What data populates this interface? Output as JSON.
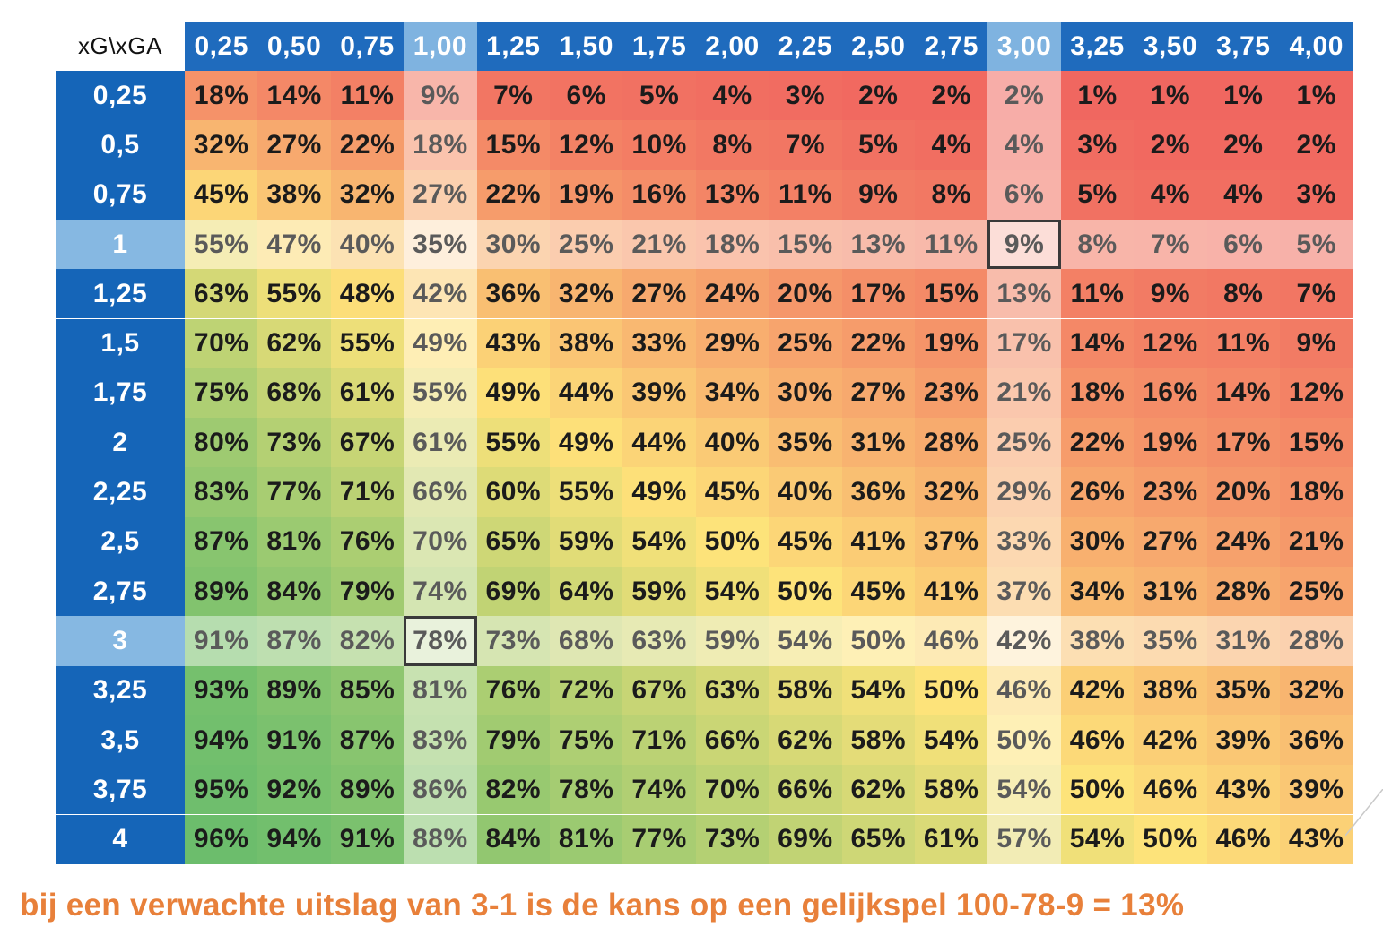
{
  "corner_label": "xG\\xGA",
  "caption": "bij een verwachte uitslag van 3-1 is de kans op een gelijkspel 100-78-9 = 13%",
  "chart_data": {
    "type": "heatmap",
    "x_header": "xGA",
    "y_header": "xG",
    "columns": [
      "0,25",
      "0,50",
      "0,75",
      "1,00",
      "1,25",
      "1,50",
      "1,75",
      "2,00",
      "2,25",
      "2,50",
      "2,75",
      "3,00",
      "3,25",
      "3,50",
      "3,75",
      "4,00"
    ],
    "rows": [
      "0,25",
      "0,5",
      "0,75",
      "1",
      "1,25",
      "1,5",
      "1,75",
      "2",
      "2,25",
      "2,5",
      "2,75",
      "3",
      "3,25",
      "3,5",
      "3,75",
      "4"
    ],
    "values": [
      [
        18,
        14,
        11,
        9,
        7,
        6,
        5,
        4,
        3,
        2,
        2,
        2,
        1,
        1,
        1,
        1
      ],
      [
        32,
        27,
        22,
        18,
        15,
        12,
        10,
        8,
        7,
        5,
        4,
        4,
        3,
        2,
        2,
        2
      ],
      [
        45,
        38,
        32,
        27,
        22,
        19,
        16,
        13,
        11,
        9,
        8,
        6,
        5,
        4,
        4,
        3
      ],
      [
        55,
        47,
        40,
        35,
        30,
        25,
        21,
        18,
        15,
        13,
        11,
        9,
        8,
        7,
        6,
        5
      ],
      [
        63,
        55,
        48,
        42,
        36,
        32,
        27,
        24,
        20,
        17,
        15,
        13,
        11,
        9,
        8,
        7
      ],
      [
        70,
        62,
        55,
        49,
        43,
        38,
        33,
        29,
        25,
        22,
        19,
        17,
        14,
        12,
        11,
        9
      ],
      [
        75,
        68,
        61,
        55,
        49,
        44,
        39,
        34,
        30,
        27,
        23,
        21,
        18,
        16,
        14,
        12
      ],
      [
        80,
        73,
        67,
        61,
        55,
        49,
        44,
        40,
        35,
        31,
        28,
        25,
        22,
        19,
        17,
        15
      ],
      [
        83,
        77,
        71,
        66,
        60,
        55,
        49,
        45,
        40,
        36,
        32,
        29,
        26,
        23,
        20,
        18
      ],
      [
        87,
        81,
        76,
        70,
        65,
        59,
        54,
        50,
        45,
        41,
        37,
        33,
        30,
        27,
        24,
        21
      ],
      [
        89,
        84,
        79,
        74,
        69,
        64,
        59,
        54,
        50,
        45,
        41,
        37,
        34,
        31,
        28,
        25
      ],
      [
        91,
        87,
        82,
        78,
        73,
        68,
        63,
        59,
        54,
        50,
        46,
        42,
        38,
        35,
        31,
        28
      ],
      [
        93,
        89,
        85,
        81,
        76,
        72,
        67,
        63,
        58,
        54,
        50,
        46,
        42,
        38,
        35,
        32
      ],
      [
        94,
        91,
        87,
        83,
        79,
        75,
        71,
        66,
        62,
        58,
        54,
        50,
        46,
        42,
        39,
        36
      ],
      [
        95,
        92,
        89,
        86,
        82,
        78,
        74,
        70,
        66,
        62,
        58,
        54,
        50,
        46,
        43,
        39
      ],
      [
        96,
        94,
        91,
        88,
        84,
        81,
        77,
        73,
        69,
        65,
        61,
        57,
        54,
        50,
        46,
        43
      ]
    ],
    "value_suffix": "%",
    "highlight_columns": [
      "1,00",
      "3,00"
    ],
    "highlight_rows": [
      "1",
      "3"
    ],
    "boxed_cells": [
      [
        "1",
        "3,00"
      ],
      [
        "3",
        "1,00"
      ]
    ],
    "color_scale": {
      "low": "#f0645f",
      "mid": "#fde37a",
      "high": "#5fba6b"
    },
    "header_color": "#1f6bbd",
    "caption_color": "#e8803a"
  }
}
